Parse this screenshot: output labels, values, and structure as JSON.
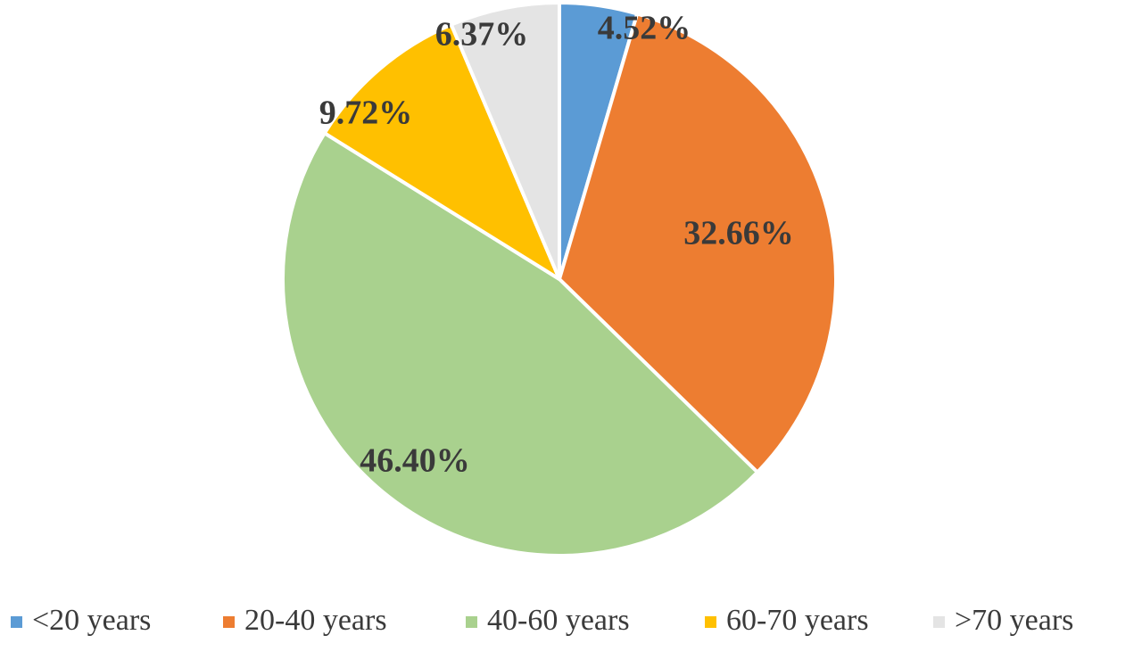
{
  "chart_data": {
    "type": "pie",
    "categories": [
      "<20 years",
      "20-40 years",
      "40-60 years",
      "60-70 years",
      ">70 years"
    ],
    "values": [
      4.52,
      32.66,
      46.4,
      9.72,
      6.37
    ],
    "value_labels": [
      "4.52%",
      "32.66%",
      "46.40%",
      "9.72%",
      "6.37%"
    ],
    "colors": [
      "#5b9bd5",
      "#ed7d31",
      "#a9d18e",
      "#ffc000",
      "#e4e4e4"
    ],
    "legend": "bottom"
  }
}
